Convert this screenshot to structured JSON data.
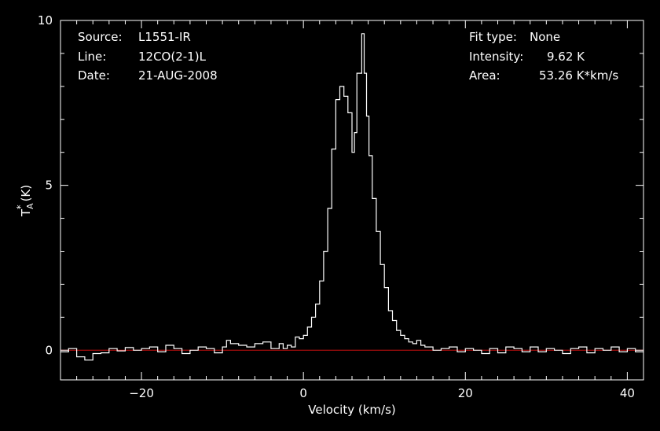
{
  "colors": {
    "background": "#000000",
    "foreground": "#ffffff",
    "baseline": "#d01010"
  },
  "info_left": [
    {
      "key": "Source:",
      "value": "L1551-IR"
    },
    {
      "key": "Line:",
      "value": "12CO(2-1)L"
    },
    {
      "key": "Date:",
      "value": "21-AUG-2008"
    }
  ],
  "info_right": [
    {
      "key": "Fit type:",
      "value": "None"
    },
    {
      "key": "Intensity:",
      "value": "9.62 K"
    },
    {
      "key": "Area:",
      "value": "53.26 K*km/s"
    }
  ],
  "chart_data": {
    "type": "line",
    "title": "",
    "xlabel": "Velocity (km/s)",
    "ylabel": "T",
    "ylabel_sub": "A",
    "ylabel_sup": "*",
    "ylabel_unit": "(K)",
    "xlim": [
      -30,
      42
    ],
    "ylim": [
      -0.9,
      10
    ],
    "xticks": [
      -20,
      0,
      20,
      40
    ],
    "yticks": [
      0,
      5,
      10
    ],
    "xtick_labels": [
      "−20",
      "0",
      "20",
      "40"
    ],
    "ytick_labels": [
      "0",
      "5",
      "10"
    ],
    "grid": false,
    "baseline_y": 0,
    "series": [
      {
        "style": "step",
        "color": "#ffffff",
        "x": [
          -30,
          -29,
          -28,
          -27,
          -26,
          -25,
          -24,
          -23,
          -22,
          -21,
          -20,
          -19,
          -18,
          -17,
          -16,
          -15,
          -14,
          -13,
          -12,
          -11,
          -10,
          -9.5,
          -9,
          -8,
          -7,
          -6,
          -5,
          -4,
          -3,
          -2.5,
          -2,
          -1.5,
          -1,
          -0.5,
          0,
          0.5,
          1,
          1.5,
          2,
          2.5,
          3,
          3.5,
          4,
          4.5,
          5,
          5.5,
          6,
          6.3,
          6.6,
          6.9,
          7.2,
          7.5,
          7.8,
          8.1,
          8.5,
          9,
          9.5,
          10,
          10.5,
          11,
          11.5,
          12,
          12.5,
          13,
          13.5,
          14,
          14.5,
          15,
          16,
          17,
          18,
          19,
          20,
          21,
          22,
          23,
          24,
          25,
          26,
          27,
          28,
          29,
          30,
          31,
          32,
          33,
          34,
          35,
          36,
          37,
          38,
          39,
          40,
          41
        ],
        "y": [
          -0.05,
          0.05,
          -0.2,
          -0.3,
          -0.1,
          -0.08,
          0.05,
          -0.02,
          0.08,
          0.0,
          0.05,
          0.1,
          -0.05,
          0.15,
          0.05,
          -0.1,
          0.0,
          0.1,
          0.05,
          -0.08,
          0.1,
          0.3,
          0.2,
          0.15,
          0.1,
          0.2,
          0.25,
          0.05,
          0.2,
          0.05,
          0.15,
          0.1,
          0.4,
          0.35,
          0.45,
          0.7,
          1.0,
          1.4,
          2.1,
          3.0,
          4.3,
          6.1,
          7.6,
          8.0,
          7.7,
          7.2,
          6.0,
          6.6,
          8.4,
          8.4,
          9.6,
          8.4,
          7.1,
          5.9,
          4.6,
          3.6,
          2.6,
          1.9,
          1.2,
          0.9,
          0.6,
          0.45,
          0.35,
          0.25,
          0.2,
          0.3,
          0.15,
          0.1,
          0.0,
          0.05,
          0.1,
          -0.05,
          0.05,
          0.0,
          -0.1,
          0.05,
          -0.08,
          0.1,
          0.05,
          -0.05,
          0.1,
          -0.05,
          0.05,
          0.0,
          -0.1,
          0.05,
          0.1,
          -0.08,
          0.05,
          0.0,
          0.1,
          -0.05,
          0.05,
          -0.05
        ]
      }
    ]
  }
}
